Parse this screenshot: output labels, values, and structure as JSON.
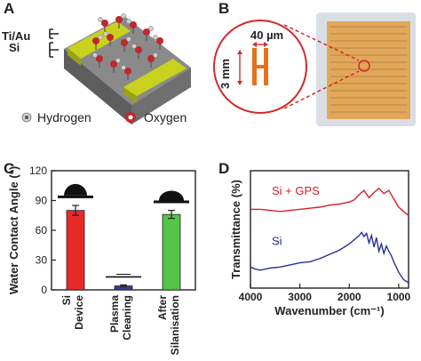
{
  "panels": {
    "a": {
      "label": "A",
      "layer_top": "Ti/Au",
      "layer_bottom": "Si",
      "legend": [
        {
          "name": "Hydrogen",
          "icon": "hydrogen-atom-icon",
          "color": "#999999"
        },
        {
          "name": "Oxygen",
          "icon": "oxygen-atom-icon",
          "color": "#c0282b"
        }
      ]
    },
    "b": {
      "label": "B",
      "scale_width": "40 µm",
      "scale_height": "3 mm",
      "colors": {
        "electrode": "#e8701a",
        "zoom": "#d42a2a",
        "chip": "#e2a85a"
      }
    },
    "c": {
      "label": "C"
    },
    "d": {
      "label": "D"
    }
  },
  "chart_data": [
    {
      "panel": "C",
      "type": "bar",
      "ylabel": "Water Contact Angle (°)",
      "ylim": [
        0,
        120
      ],
      "yticks": [
        0,
        30,
        60,
        90,
        120
      ],
      "categories": [
        "Si Device",
        "Plasma Cleaning",
        "After Silanisation"
      ],
      "category_lines": [
        [
          "Si",
          "Device"
        ],
        [
          "Plasma",
          "Cleaning"
        ],
        [
          "After",
          "Silanisation"
        ]
      ],
      "values": [
        80,
        4,
        76
      ],
      "errors": [
        5,
        1,
        4
      ],
      "colors": [
        "#e8292a",
        "#2e3f9c",
        "#55c548"
      ],
      "annotations": [
        "13"
      ]
    },
    {
      "panel": "D",
      "type": "line",
      "xlabel": "Wavenumber (cm⁻¹)",
      "ylabel": "Transmittance (%)",
      "xlim": [
        4000,
        800
      ],
      "xticks": [
        4000,
        3000,
        2000,
        1000
      ],
      "series": [
        {
          "name": "Si + GPS",
          "color": "#d4202a",
          "values": [
            [
              4000,
              0.7
            ],
            [
              3800,
              0.7
            ],
            [
              3600,
              0.69
            ],
            [
              3400,
              0.68
            ],
            [
              3200,
              0.69
            ],
            [
              3000,
              0.7
            ],
            [
              2800,
              0.71
            ],
            [
              2600,
              0.72
            ],
            [
              2400,
              0.74
            ],
            [
              2200,
              0.75
            ],
            [
              2000,
              0.77
            ],
            [
              1900,
              0.79
            ],
            [
              1800,
              0.84
            ],
            [
              1700,
              0.88
            ],
            [
              1600,
              0.81
            ],
            [
              1500,
              0.86
            ],
            [
              1400,
              0.9
            ],
            [
              1300,
              0.85
            ],
            [
              1200,
              0.88
            ],
            [
              1100,
              0.8
            ],
            [
              1000,
              0.72
            ],
            [
              900,
              0.68
            ],
            [
              800,
              0.64
            ]
          ]
        },
        {
          "name": "Si",
          "color": "#2a2f8f",
          "values": [
            [
              4000,
              0.15
            ],
            [
              3900,
              0.13
            ],
            [
              3800,
              0.12
            ],
            [
              3600,
              0.14
            ],
            [
              3400,
              0.15
            ],
            [
              3200,
              0.17
            ],
            [
              3000,
              0.19
            ],
            [
              2800,
              0.2
            ],
            [
              2600,
              0.23
            ],
            [
              2400,
              0.27
            ],
            [
              2200,
              0.31
            ],
            [
              2000,
              0.37
            ],
            [
              1900,
              0.41
            ],
            [
              1800,
              0.45
            ],
            [
              1750,
              0.48
            ],
            [
              1700,
              0.44
            ],
            [
              1650,
              0.47
            ],
            [
              1600,
              0.38
            ],
            [
              1550,
              0.45
            ],
            [
              1500,
              0.34
            ],
            [
              1450,
              0.43
            ],
            [
              1400,
              0.3
            ],
            [
              1350,
              0.37
            ],
            [
              1300,
              0.28
            ],
            [
              1250,
              0.35
            ],
            [
              1200,
              0.3
            ],
            [
              1150,
              0.26
            ],
            [
              1100,
              0.2
            ],
            [
              1000,
              0.1
            ],
            [
              900,
              0.03
            ],
            [
              800,
              0.0
            ]
          ]
        }
      ]
    }
  ]
}
